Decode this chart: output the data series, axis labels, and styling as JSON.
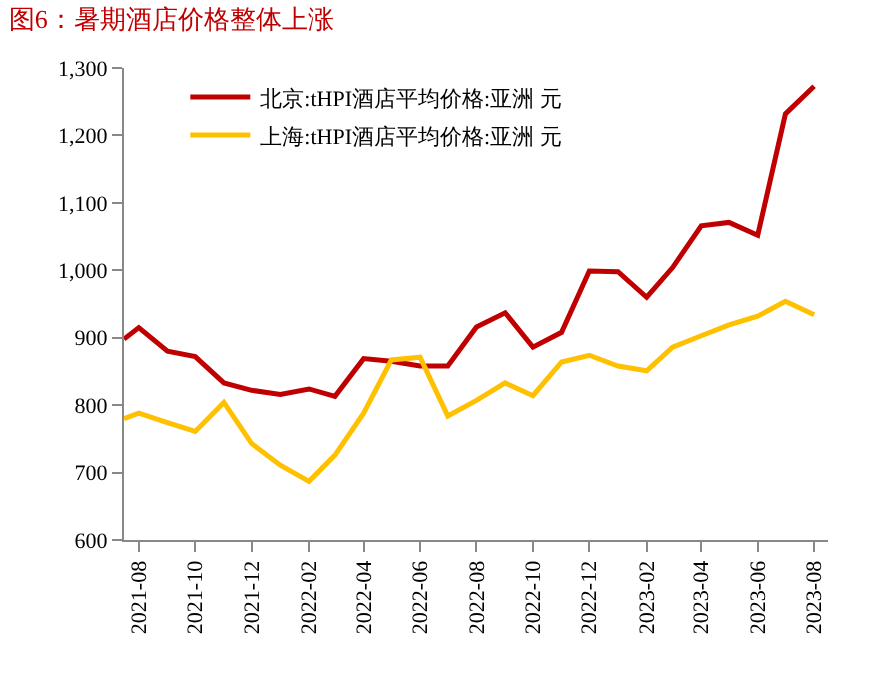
{
  "chart_data": {
    "type": "line",
    "title": "图6：暑期酒店价格整体上涨",
    "x": [
      "2021-07-16",
      "2021-08-01",
      "2021-09-01",
      "2021-10-01",
      "2021-11-01",
      "2021-12-01",
      "2022-01-01",
      "2022-02-01",
      "2022-03-01",
      "2022-04-01",
      "2022-05-01",
      "2022-06-01",
      "2022-07-01",
      "2022-08-01",
      "2022-09-01",
      "2022-10-01",
      "2022-11-01",
      "2022-12-01",
      "2023-01-01",
      "2023-02-01",
      "2023-03-01",
      "2023-04-01",
      "2023-05-01",
      "2023-06-01",
      "2023-07-01",
      "2023-08-01"
    ],
    "series": [
      {
        "name": "北京:tHPI酒店平均价格:亚洲 元",
        "color": "#c00000",
        "values": [
          898,
          915,
          880,
          872,
          833,
          822,
          816,
          824,
          813,
          869,
          865,
          858,
          858,
          916,
          937,
          886,
          908,
          999,
          998,
          960,
          1004,
          1066,
          1071,
          1052,
          1232,
          1273
        ]
      },
      {
        "name": "上海:tHPI酒店平均价格:亚洲 元",
        "color": "#ffc000",
        "values": [
          780,
          788,
          774,
          761,
          804,
          743,
          711,
          687,
          726,
          788,
          867,
          871,
          784,
          807,
          833,
          814,
          864,
          874,
          858,
          851,
          886,
          903,
          919,
          932,
          954,
          934
        ]
      }
    ],
    "xlim": [
      "2021-07-16",
      "2023-08-16"
    ],
    "xticks": [
      {
        "value": "2021-08-01",
        "label": "2021-08"
      },
      {
        "value": "2021-10-01",
        "label": "2021-10"
      },
      {
        "value": "2021-12-01",
        "label": "2021-12"
      },
      {
        "value": "2022-02-01",
        "label": "2022-02"
      },
      {
        "value": "2022-04-01",
        "label": "2022-04"
      },
      {
        "value": "2022-06-01",
        "label": "2022-06"
      },
      {
        "value": "2022-08-01",
        "label": "2022-08"
      },
      {
        "value": "2022-10-01",
        "label": "2022-10"
      },
      {
        "value": "2022-12-01",
        "label": "2022-12"
      },
      {
        "value": "2023-02-01",
        "label": "2023-02"
      },
      {
        "value": "2023-04-01",
        "label": "2023-04"
      },
      {
        "value": "2023-06-01",
        "label": "2023-06"
      },
      {
        "value": "2023-08-01",
        "label": "2023-08"
      }
    ],
    "ylim": [
      600,
      1300
    ],
    "yticks": [
      600,
      700,
      800,
      900,
      {
        "value": 1000,
        "label": "1,000"
      },
      {
        "value": 1100,
        "label": "1,100"
      },
      {
        "value": 1200,
        "label": "1,200"
      },
      {
        "value": 1300,
        "label": "1,300"
      }
    ],
    "grid": false,
    "legend": "top left",
    "marker": "none",
    "line_style": "solid"
  }
}
